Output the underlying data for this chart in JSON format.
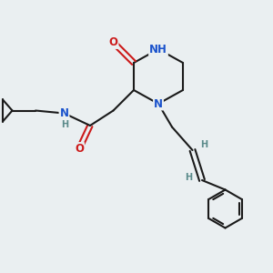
{
  "bg_color": "#eaeff1",
  "bond_color": "#1a1a1a",
  "N_color": "#1a52cc",
  "O_color": "#cc1a1a",
  "H_color": "#5a8a8a",
  "line_width": 1.5,
  "font_size_atom": 8.5,
  "font_size_H": 7.0,
  "xlim": [
    0,
    10
  ],
  "ylim": [
    0,
    10
  ]
}
